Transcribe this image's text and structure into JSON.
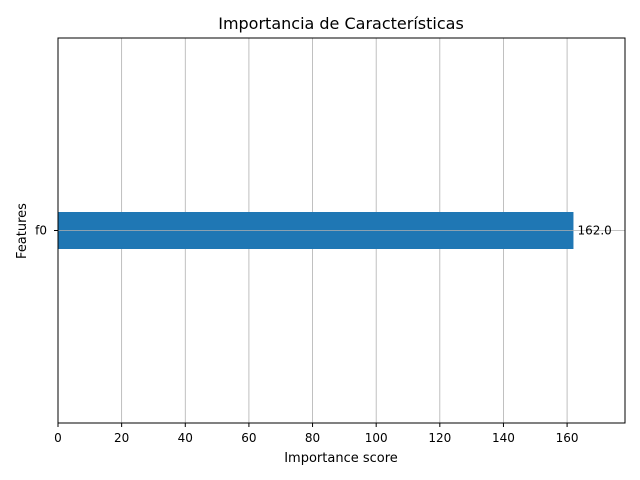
{
  "chart_data": {
    "type": "bar",
    "orientation": "horizontal",
    "title": "Importancia de Características",
    "xlabel": "Importance score",
    "ylabel": "Features",
    "categories": [
      "f0"
    ],
    "values": [
      162.0
    ],
    "data_labels": [
      "162.0"
    ],
    "xlim": [
      0,
      178.2
    ],
    "xticks": [
      0,
      20,
      40,
      60,
      80,
      100,
      120,
      140,
      160
    ],
    "grid": true,
    "legend": "none"
  },
  "colors": {
    "bar": "#1f77b4",
    "grid": "#b0b0b0",
    "axes": "#000000",
    "background": "#ffffff"
  }
}
